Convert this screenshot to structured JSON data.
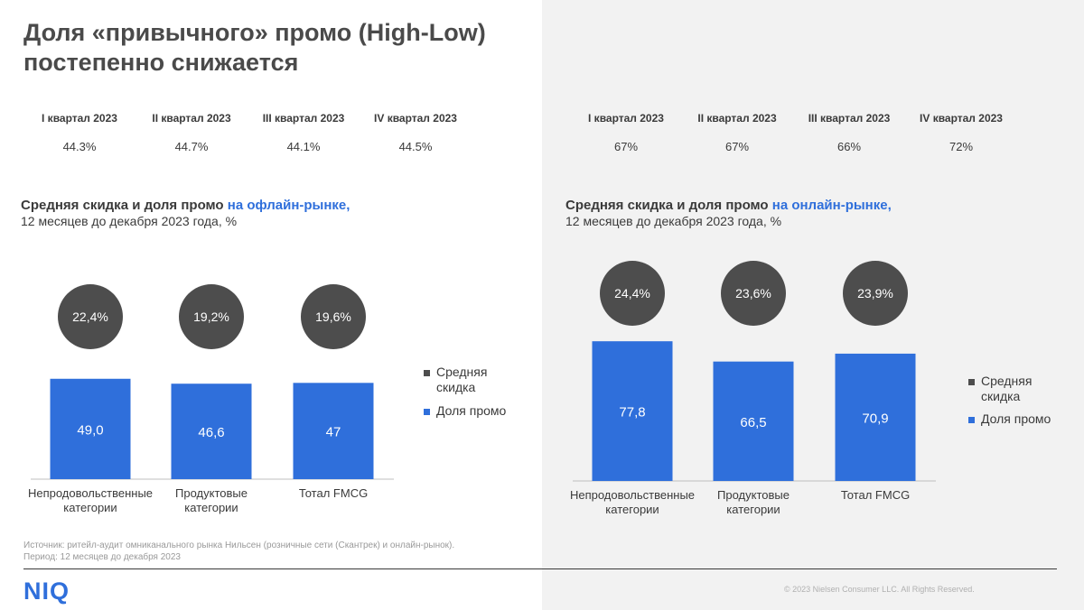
{
  "title": "Доля «привычного» промо (High-Low) постепенно снижается",
  "offline_quarters": [
    {
      "label": "I квартал 2023",
      "value": "44.3%"
    },
    {
      "label": "II квартал 2023",
      "value": "44.7%"
    },
    {
      "label": "III квартал 2023",
      "value": "44.1%"
    },
    {
      "label": "IV квартал 2023",
      "value": "44.5%"
    }
  ],
  "online_quarters": [
    {
      "label": "I квартал 2023",
      "value": "67%"
    },
    {
      "label": "II квартал 2023",
      "value": "67%"
    },
    {
      "label": "III квартал 2023",
      "value": "66%"
    },
    {
      "label": "IV квартал 2023",
      "value": "72%"
    }
  ],
  "offline": {
    "title_prefix": "Средняя скидка и доля промо ",
    "title_highlight": "на офлайн-рынке,",
    "subtitle": "12 месяцев до декабря 2023 года, %"
  },
  "online": {
    "title_prefix": "Средняя скидка и доля промо ",
    "title_highlight": "на онлайн-рынке,",
    "subtitle": "12 месяцев до декабря 2023 года, %"
  },
  "legend": {
    "discount": "Средняя скидка",
    "promo": "Доля промо"
  },
  "colors": {
    "promo_bar": "#2f6fdb",
    "discount_circle": "#4d4d4d",
    "highlight": "#2f6fdb"
  },
  "chart_data": [
    {
      "type": "bar",
      "categories": [
        [
          "Непродовольственные",
          "категории"
        ],
        [
          "Продуктовые",
          "категории"
        ],
        [
          "Тотал FMCG"
        ]
      ],
      "series": [
        {
          "name": "Доля промо",
          "values": [
            49.0,
            46.6,
            47
          ],
          "labels": [
            "49,0",
            "46,6",
            "47"
          ]
        },
        {
          "name": "Средняя скидка",
          "values": [
            22.4,
            19.2,
            19.6
          ],
          "labels": [
            "22,4%",
            "19,2%",
            "19,6%"
          ]
        }
      ],
      "ylim": [
        0,
        100
      ]
    },
    {
      "type": "bar",
      "categories": [
        [
          "Непродовольственные",
          "категории"
        ],
        [
          "Продуктовые",
          "категории"
        ],
        [
          "Тотал FMCG"
        ]
      ],
      "series": [
        {
          "name": "Доля промо",
          "values": [
            77.8,
            66.5,
            70.9
          ],
          "labels": [
            "77,8",
            "66,5",
            "70,9"
          ]
        },
        {
          "name": "Средняя скидка",
          "values": [
            24.4,
            23.6,
            23.9
          ],
          "labels": [
            "24,4%",
            "23,6%",
            "23,9%"
          ]
        }
      ],
      "ylim": [
        0,
        100
      ]
    }
  ],
  "source": "Источник: ритейл-аудит омниканального рынка Нильсен (розничные сети (Скантрек) и онлайн-рынок).",
  "period": "Период: 12 месяцев до декабря 2023",
  "logo": "NIQ",
  "copyright": "© 2023 Nielsen Consumer LLC. All Rights Reserved."
}
